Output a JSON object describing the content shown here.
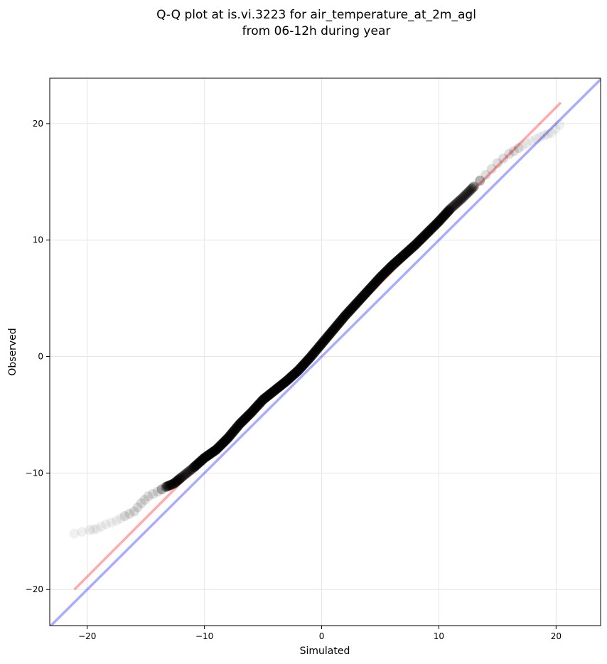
{
  "chart_data": {
    "type": "scatter",
    "title": "Q-Q plot at is.vi.3223 for air_temperature_at_2m_agl",
    "subtitle": "from 06-12h during year",
    "xlabel": "Simulated",
    "ylabel": "Observed",
    "xlim": [
      -23.2,
      23.8
    ],
    "ylim": [
      -23.1,
      23.9
    ],
    "xticks": [
      -20,
      -10,
      0,
      10,
      20
    ],
    "yticks": [
      -20,
      -10,
      0,
      10,
      20
    ],
    "xtick_labels": [
      "−20",
      "−10",
      "0",
      "10",
      "20"
    ],
    "ytick_labels": [
      "−20",
      "−10",
      "0",
      "10",
      "20"
    ],
    "grid": true,
    "series": [
      {
        "marker": "circle",
        "color": "#000000",
        "quantile_curve": [
          [
            -21.1,
            -15.2
          ],
          [
            -19.8,
            -14.9
          ],
          [
            -19.2,
            -14.8
          ],
          [
            -18.4,
            -14.4
          ],
          [
            -17.5,
            -14.1
          ],
          [
            -16.8,
            -13.7
          ],
          [
            -16.0,
            -13.3
          ],
          [
            -15.4,
            -12.6
          ],
          [
            -14.8,
            -12.0
          ],
          [
            -14.0,
            -11.6
          ],
          [
            -13.3,
            -11.2
          ],
          [
            -12.6,
            -10.9
          ],
          [
            -12.0,
            -10.4
          ],
          [
            -11.0,
            -9.6
          ],
          [
            -10.0,
            -8.7
          ],
          [
            -9.0,
            -8.0
          ],
          [
            -8.0,
            -7.0
          ],
          [
            -7.0,
            -5.8
          ],
          [
            -6.0,
            -4.8
          ],
          [
            -5.0,
            -3.7
          ],
          [
            -4.0,
            -2.9
          ],
          [
            -3.0,
            -2.1
          ],
          [
            -2.0,
            -1.2
          ],
          [
            -1.0,
            -0.1
          ],
          [
            0.0,
            1.1
          ],
          [
            1.0,
            2.3
          ],
          [
            2.0,
            3.5
          ],
          [
            3.0,
            4.6
          ],
          [
            4.0,
            5.7
          ],
          [
            5.0,
            6.8
          ],
          [
            6.0,
            7.8
          ],
          [
            7.0,
            8.7
          ],
          [
            8.0,
            9.6
          ],
          [
            9.0,
            10.6
          ],
          [
            10.0,
            11.6
          ],
          [
            11.0,
            12.7
          ],
          [
            12.0,
            13.6
          ],
          [
            13.0,
            14.6
          ],
          [
            14.0,
            15.6
          ],
          [
            15.0,
            16.6
          ],
          [
            16.0,
            17.4
          ],
          [
            16.8,
            17.9
          ],
          [
            17.5,
            18.3
          ],
          [
            18.3,
            18.7
          ],
          [
            19.0,
            19.0
          ],
          [
            19.6,
            19.2
          ],
          [
            20.3,
            19.9
          ]
        ]
      }
    ],
    "fit_line": {
      "color": "#ff0000",
      "x": [
        -21.1,
        20.4
      ],
      "y": [
        -20.0,
        21.8
      ]
    },
    "identity_line": {
      "color": "#0000ff",
      "x": [
        -23.2,
        23.8
      ],
      "y": [
        -23.2,
        23.8
      ]
    }
  }
}
